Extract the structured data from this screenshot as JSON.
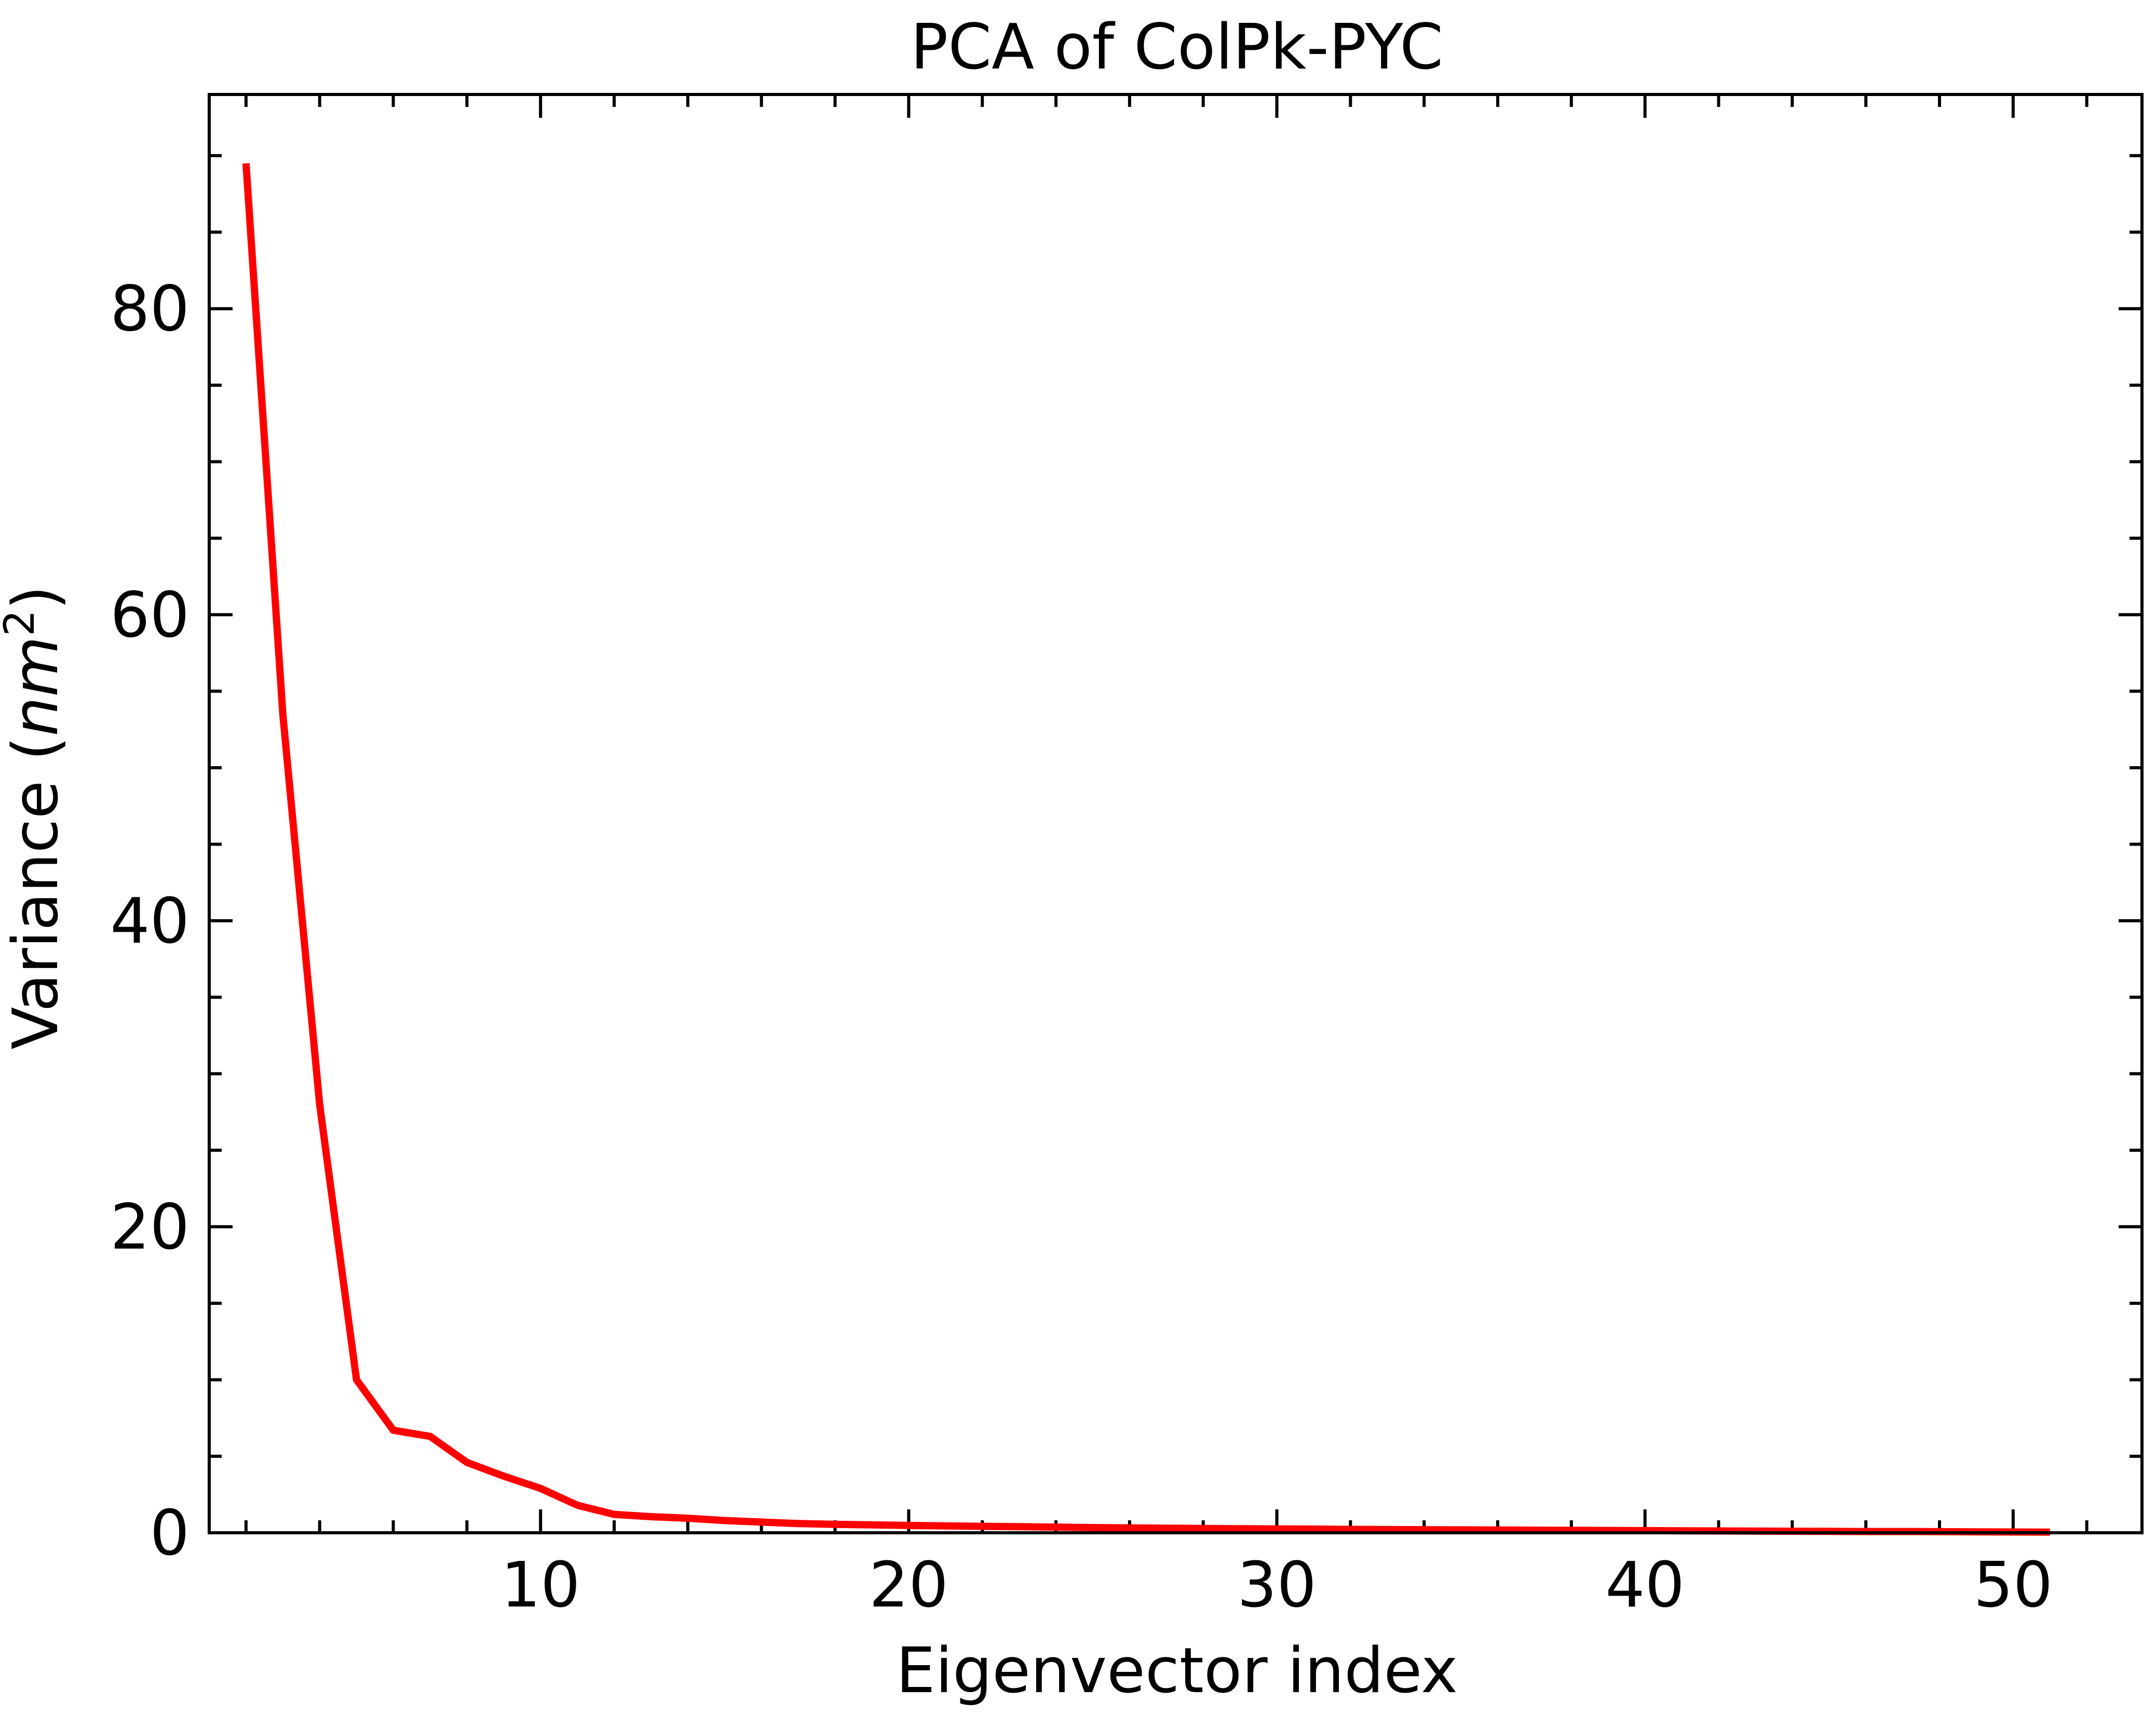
{
  "chart_data": {
    "type": "line",
    "title": "PCA of ColPk-PYC",
    "xlabel": "Eigenvector index",
    "ylabel_main": "Variance (",
    "ylabel_unit": "nm",
    "ylabel_sup": "2",
    "ylabel_close": ")",
    "xlim": [
      1,
      53.5
    ],
    "ylim": [
      0,
      94
    ],
    "x_ticks": [
      10,
      20,
      30,
      40,
      50
    ],
    "x_tick_labels": [
      "10",
      "20",
      "30",
      "40",
      "50"
    ],
    "y_ticks": [
      0,
      20,
      40,
      60,
      80
    ],
    "y_tick_labels": [
      "0",
      "20",
      "40",
      "60",
      "80"
    ],
    "x_minor_step": 2,
    "y_minor_step": 5,
    "grid": false,
    "line_color": "#ff0000",
    "series": [
      {
        "x": [
          2,
          3,
          4,
          5,
          6,
          7,
          8,
          9,
          10,
          11,
          12,
          13,
          14,
          15,
          16,
          17,
          18,
          19,
          20,
          21,
          22,
          23,
          24,
          25,
          26,
          27,
          28,
          29,
          30,
          31,
          32,
          33,
          34,
          35,
          36,
          37,
          38,
          39,
          40,
          41,
          42,
          43,
          44,
          45,
          46,
          47,
          48,
          49,
          50,
          51
        ],
        "values": [
          89.5,
          53.5,
          28,
          10,
          6.7,
          6.3,
          4.6,
          3.7,
          2.9,
          1.8,
          1.2,
          1.05,
          0.95,
          0.8,
          0.7,
          0.6,
          0.55,
          0.52,
          0.48,
          0.45,
          0.42,
          0.4,
          0.37,
          0.34,
          0.32,
          0.3,
          0.28,
          0.26,
          0.25,
          0.24,
          0.22,
          0.21,
          0.2,
          0.19,
          0.18,
          0.17,
          0.16,
          0.15,
          0.14,
          0.13,
          0.12,
          0.11,
          0.1,
          0.09,
          0.08,
          0.08,
          0.07,
          0.06,
          0.05,
          0.04
        ]
      }
    ]
  }
}
